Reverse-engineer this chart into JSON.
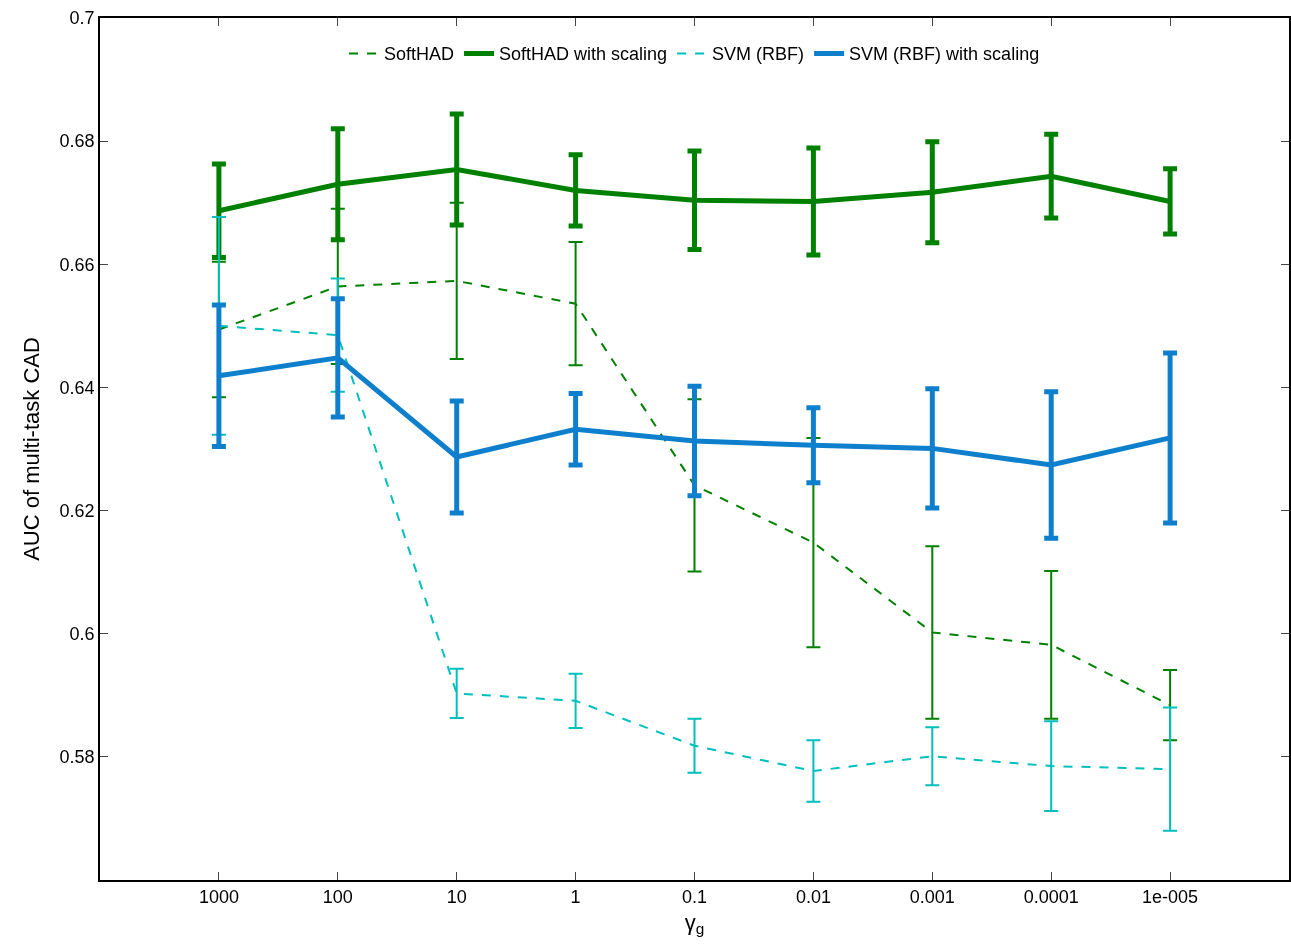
{
  "chart_data": {
    "type": "line",
    "xlabel": "γ$_{g}$",
    "ylabel": "AUC of multi-task CAD",
    "categories": [
      "1000",
      "100",
      "10",
      "1",
      "0.1",
      "0.01",
      "0.001",
      "0.0001",
      "1e-005"
    ],
    "ylim": [
      0.56,
      0.7
    ],
    "yticks": [
      0.58,
      0.6,
      0.62,
      0.64,
      0.66,
      0.68,
      0.7
    ],
    "grid": false,
    "legend": "top",
    "marker": "none",
    "series": [
      {
        "name": "SoftHAD",
        "color": "#008000",
        "line_style": "dashed",
        "values": [
          0.6494,
          0.6564,
          0.6573,
          0.6536,
          0.6241,
          0.6148,
          0.6002,
          0.5982,
          0.5884
        ],
        "errors": [
          0.011,
          0.0126,
          0.0127,
          0.01,
          0.014,
          0.017,
          0.014,
          0.012,
          0.0057
        ]
      },
      {
        "name": "SoftHAD with scaling",
        "color": "#008000",
        "line_style": "solid",
        "values": [
          0.6687,
          0.673,
          0.6754,
          0.672,
          0.6704,
          0.6702,
          0.6717,
          0.6743,
          0.6702
        ],
        "errors": [
          0.0076,
          0.009,
          0.009,
          0.0058,
          0.008,
          0.0087,
          0.0082,
          0.0068,
          0.0053
        ]
      },
      {
        "name": "SVM (RBF)",
        "color": "#00bfbf",
        "line_style": "dashed",
        "values": [
          0.65,
          0.6485,
          0.5903,
          0.5891,
          0.5818,
          0.5777,
          0.5801,
          0.5785,
          0.578
        ],
        "errors": [
          0.0177,
          0.0092,
          0.004,
          0.0044,
          0.0044,
          0.005,
          0.0047,
          0.0073,
          0.01
        ]
      },
      {
        "name": "SVM (RBF) with scaling",
        "color": "#0e7fcc",
        "line_style": "solid",
        "values": [
          0.6419,
          0.6448,
          0.6287,
          0.6332,
          0.6313,
          0.6306,
          0.6301,
          0.6274,
          0.6318
        ],
        "errors": [
          0.0115,
          0.0096,
          0.0091,
          0.0058,
          0.0089,
          0.0061,
          0.0097,
          0.0119,
          0.0138
        ]
      }
    ]
  }
}
